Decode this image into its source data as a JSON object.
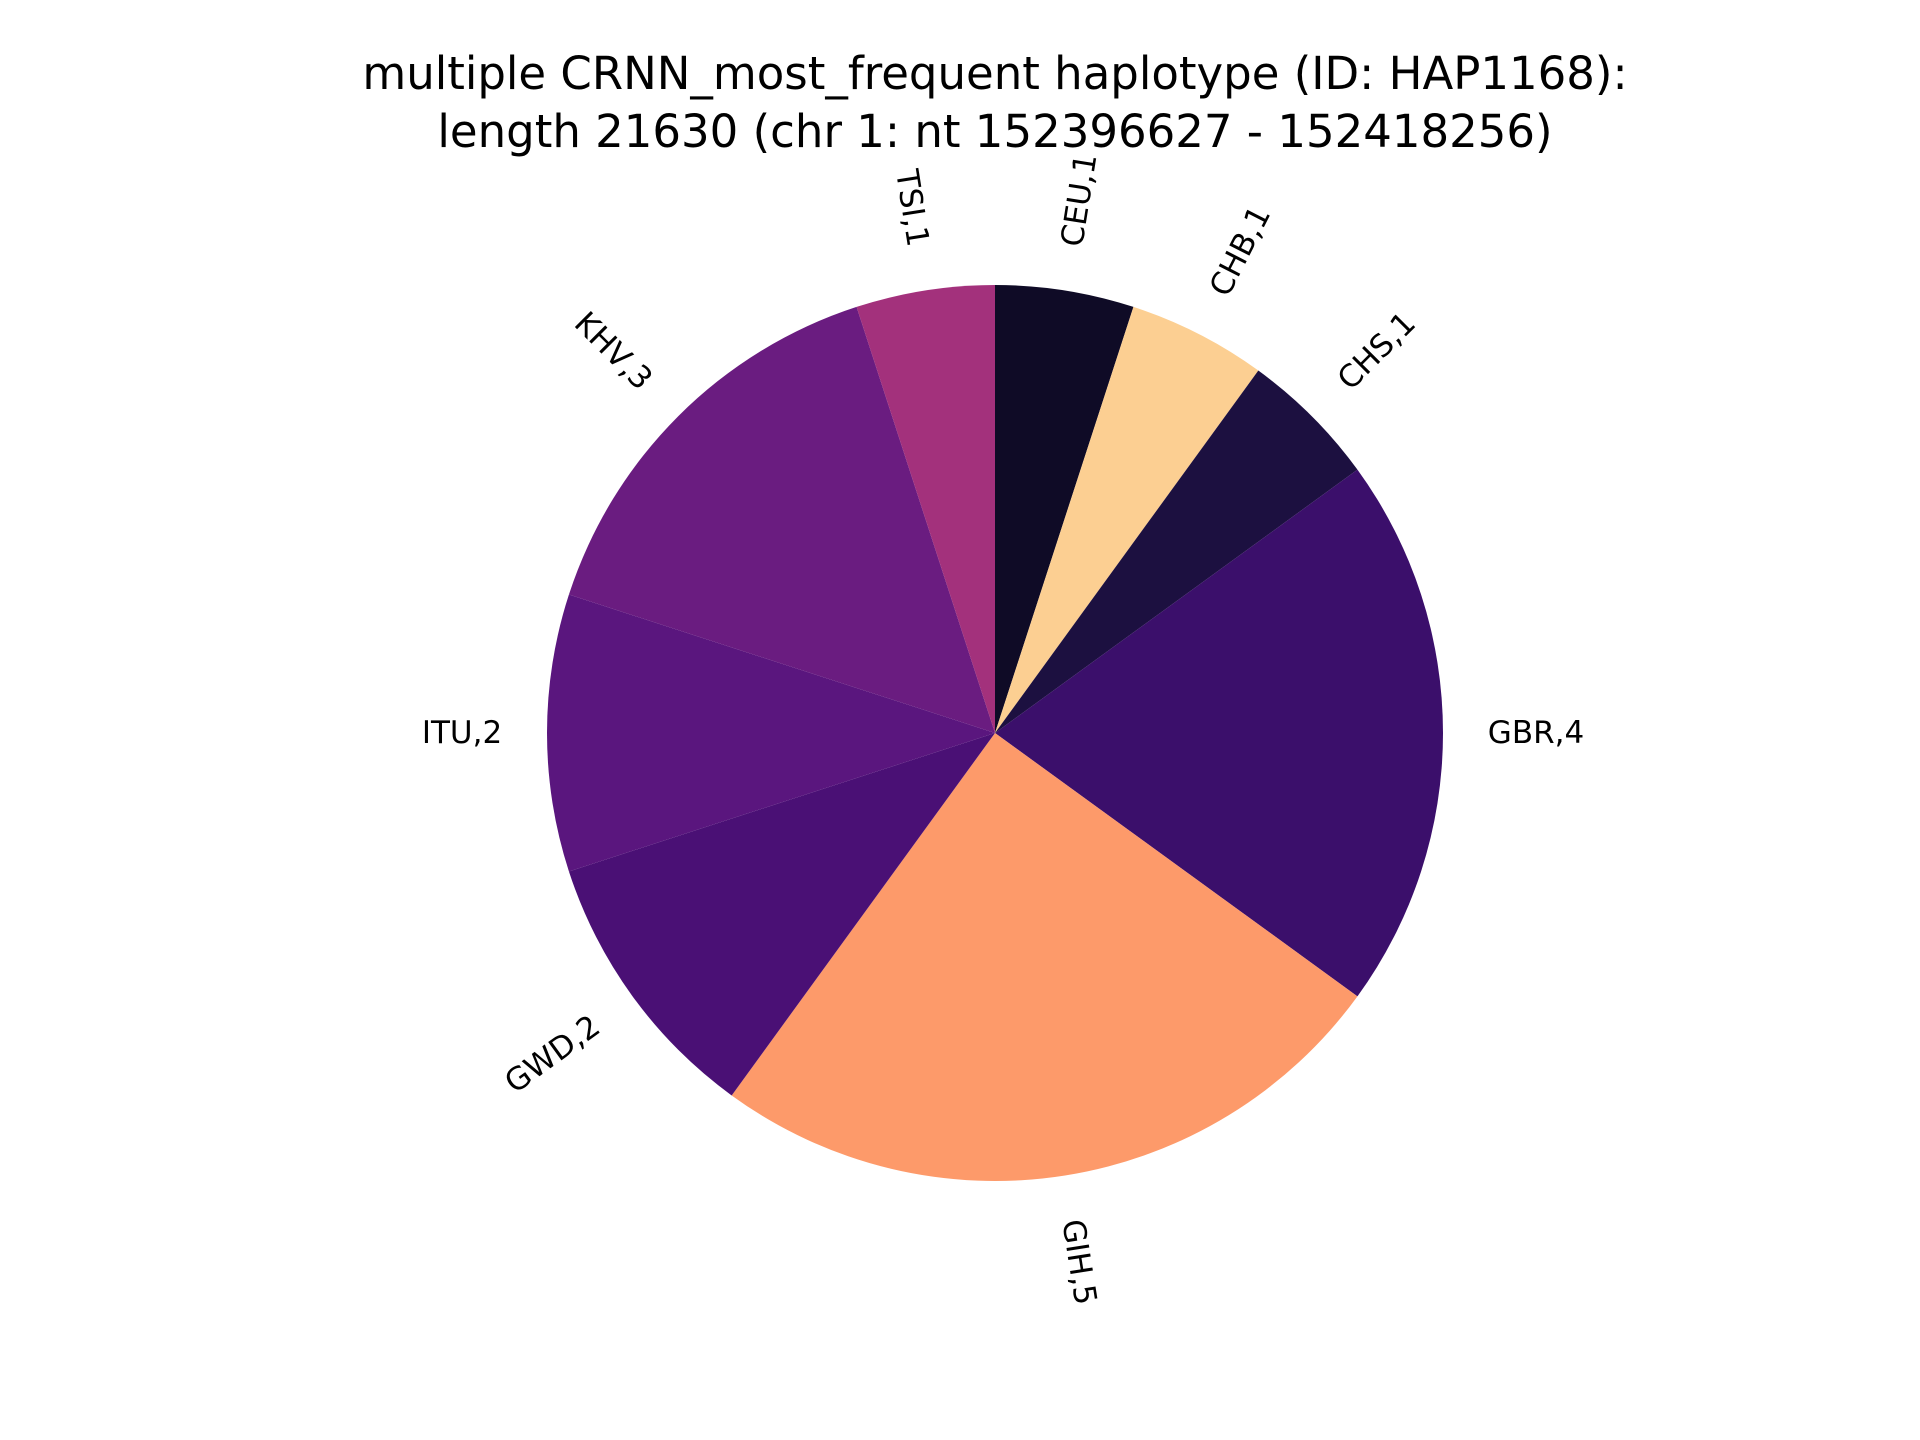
{
  "chart_data": {
    "type": "pie",
    "title_lines": [
      "multiple CRNN_most_frequent haplotype (ID: HAP1168):",
      "length 21630 (chr 1: nt 152396627 - 152418256)"
    ],
    "start_angle_deg": 90,
    "direction": "clockwise",
    "slices": [
      {
        "category": "CEU",
        "value": 1,
        "label": "CEU,1",
        "color": "#0f0b26"
      },
      {
        "category": "CHB",
        "value": 1,
        "label": "CHB,1",
        "color": "#fccf92"
      },
      {
        "category": "CHS",
        "value": 1,
        "label": "CHS,1",
        "color": "#1c1040"
      },
      {
        "category": "GBR",
        "value": 4,
        "label": "GBR,4",
        "color": "#3b0f6b"
      },
      {
        "category": "GIH",
        "value": 5,
        "label": "GIH,5",
        "color": "#fd9a6a"
      },
      {
        "category": "GWD",
        "value": 2,
        "label": "GWD,2",
        "color": "#4a1075"
      },
      {
        "category": "ITU",
        "value": 2,
        "label": "ITU,2",
        "color": "#5a167e"
      },
      {
        "category": "KHV",
        "value": 3,
        "label": "KHV,3",
        "color": "#6a1c80"
      },
      {
        "category": "TSI",
        "value": 1,
        "label": "TSI,1",
        "color": "#a3317c"
      }
    ]
  }
}
